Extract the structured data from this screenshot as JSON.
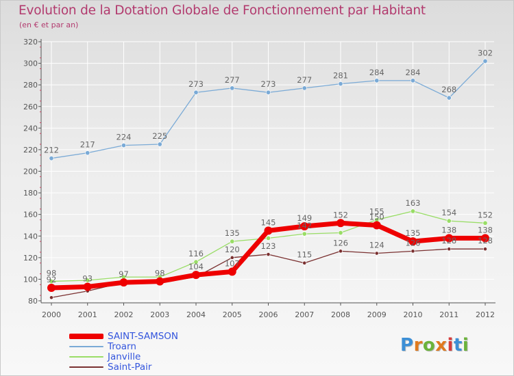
{
  "header": {
    "title": "Evolution de la Dotation Globale de Fonctionnement par Habitant",
    "subtitle": "(en € et par an)"
  },
  "logo": {
    "letters": [
      "P",
      "r",
      "o",
      "x",
      "i",
      "t",
      "i"
    ],
    "colors": [
      "#3c8fd6",
      "#e07a1f",
      "#6bb33a",
      "#e07a1f",
      "#d63c3c",
      "#3c8fd6",
      "#6bb33a"
    ]
  },
  "colors": {
    "title": "#b23a6e",
    "grid": "#ffffff",
    "axis": "#555555",
    "label": "#555555"
  },
  "chart_data": {
    "type": "line",
    "title": "Evolution de la Dotation Globale de Fonctionnement par Habitant",
    "subtitle": "(en € et par an)",
    "xlabel": "",
    "ylabel": "",
    "categories": [
      "2000",
      "2001",
      "2002",
      "2003",
      "2004",
      "2005",
      "2006",
      "2007",
      "2008",
      "2009",
      "2010",
      "2011",
      "2012"
    ],
    "ylim": [
      80,
      320
    ],
    "yticks": [
      80,
      100,
      120,
      140,
      160,
      180,
      200,
      220,
      240,
      260,
      280,
      300,
      320
    ],
    "grid": true,
    "legend_position": "bottom-left",
    "series": [
      {
        "name": "Saint-Pair",
        "color": "#7a3030",
        "values": [
          83,
          89,
          97,
          97,
          102,
          120,
          123,
          115,
          126,
          124,
          126,
          128,
          128
        ],
        "labels": [
          null,
          null,
          null,
          null,
          null,
          "120",
          "123",
          "115",
          "126",
          "124",
          "126",
          "128",
          "128"
        ]
      },
      {
        "name": "Janville",
        "color": "#99dd66",
        "values": [
          98,
          99,
          102,
          102,
          116,
          135,
          138,
          142,
          143,
          155,
          163,
          154,
          152
        ],
        "labels": [
          "98",
          null,
          null,
          null,
          "116",
          "135",
          null,
          "142",
          null,
          "155",
          "163",
          "154",
          "152"
        ]
      },
      {
        "name": "Troarn",
        "color": "#7aaad6",
        "values": [
          212,
          217,
          224,
          225,
          273,
          277,
          273,
          277,
          281,
          284,
          284,
          268,
          302
        ],
        "labels": [
          "212",
          "217",
          "224",
          "225",
          "273",
          "277",
          "273",
          "277",
          "281",
          "284",
          "284",
          "268",
          "302"
        ]
      },
      {
        "name": "SAINT-SAMSON",
        "color": "#ee0000",
        "values": [
          92,
          93,
          97,
          98,
          104,
          107,
          145,
          149,
          152,
          150,
          135,
          138,
          138
        ],
        "labels": [
          "92",
          "93",
          "97",
          "98",
          "104",
          "107",
          "145",
          "149",
          "152",
          "150",
          "135",
          "138",
          "138"
        ]
      }
    ],
    "legend": [
      "SAINT-SAMSON",
      "Troarn",
      "Janville",
      "Saint-Pair"
    ]
  }
}
